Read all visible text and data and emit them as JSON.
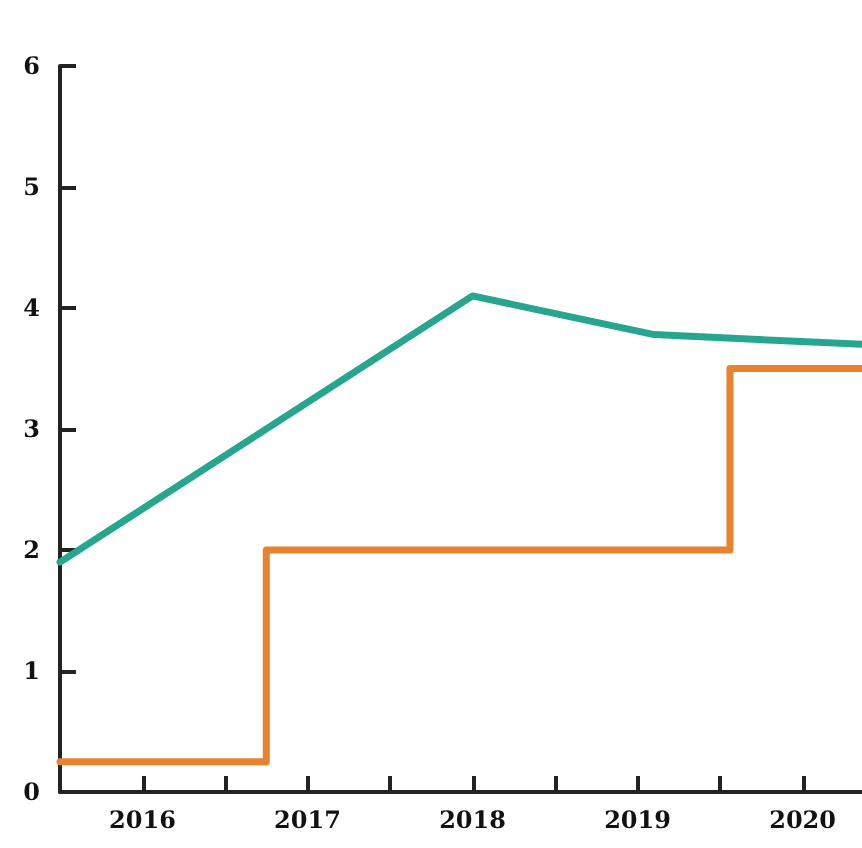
{
  "chart_data": {
    "type": "line",
    "marker": "none",
    "grid": false,
    "xlim": [
      2015.5,
      2020.36
    ],
    "ylim": [
      0,
      6
    ],
    "yticks": [
      0,
      1,
      2,
      3,
      4,
      5,
      6
    ],
    "xticks": [
      {
        "value": 2016,
        "label": "2016"
      },
      {
        "value": 2016.5,
        "label": null
      },
      {
        "value": 2017,
        "label": "2017"
      },
      {
        "value": 2017.5,
        "label": null
      },
      {
        "value": 2018,
        "label": "2018"
      },
      {
        "value": 2018.5,
        "label": null
      },
      {
        "value": 2019,
        "label": "2019"
      },
      {
        "value": 2019.5,
        "label": null
      },
      {
        "value": 2020,
        "label": "2020"
      }
    ],
    "series": [
      {
        "color": "#26a68f",
        "x": [
          2015.5,
          2018,
          2019.1,
          2020.36
        ],
        "values": [
          1.9,
          4.1,
          3.78,
          3.7
        ]
      },
      {
        "type": "step",
        "color": "#e8822f",
        "x": [
          2015.5,
          2016.75,
          2019.56,
          2020.36
        ],
        "values": [
          0.25,
          2,
          3.5,
          3.5
        ]
      }
    ]
  }
}
